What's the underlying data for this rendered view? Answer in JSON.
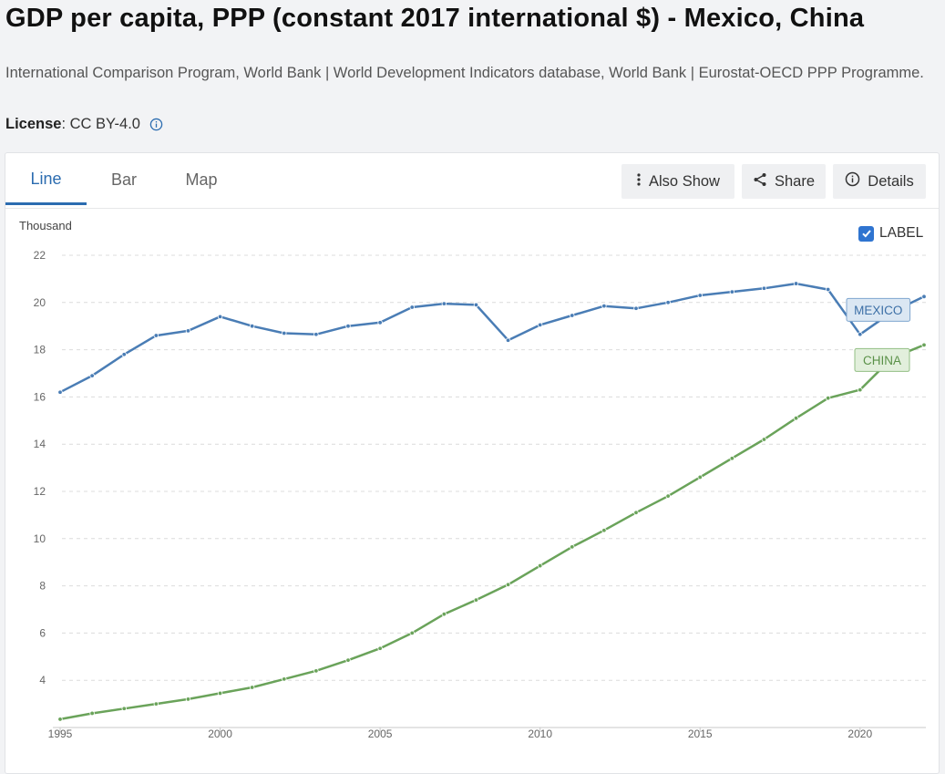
{
  "header": {
    "title": "GDP per capita, PPP (constant 2017 international $) - Mexico, China",
    "sources": "International Comparison Program, World Bank | World Development Indicators database, World Bank | Eurostat-OECD PPP Programme.",
    "license_label": "License",
    "license_value": " : CC BY-4.0"
  },
  "tabs": [
    {
      "label": "Line",
      "active": true
    },
    {
      "label": "Bar",
      "active": false
    },
    {
      "label": "Map",
      "active": false
    }
  ],
  "toolbar": {
    "also_show_label": "Also Show",
    "share_label": "Share",
    "details_label": "Details"
  },
  "label_toggle": {
    "label": "LABEL",
    "checked": true
  },
  "icons": {
    "also_show": "vertical-dots-icon",
    "share": "share-icon",
    "details": "info-circle-icon",
    "license_info": "info-circle-icon"
  },
  "colors": {
    "accent": "#2b6cb0",
    "mexico": "#4a7db5",
    "china": "#6aa35a"
  },
  "chart_data": {
    "type": "line",
    "ylabel": "Thousand",
    "ylim": [
      2,
      22
    ],
    "yticks": [
      4,
      6,
      8,
      10,
      12,
      14,
      16,
      18,
      20,
      22
    ],
    "xlim": [
      1995,
      2022
    ],
    "xticks": [
      1995,
      2000,
      2005,
      2010,
      2015,
      2020
    ],
    "grid": true,
    "x": [
      1995,
      1996,
      1997,
      1998,
      1999,
      2000,
      2001,
      2002,
      2003,
      2004,
      2005,
      2006,
      2007,
      2008,
      2009,
      2010,
      2011,
      2012,
      2013,
      2014,
      2015,
      2016,
      2017,
      2018,
      2019,
      2020,
      2021,
      2022
    ],
    "series": [
      {
        "name": "MEXICO",
        "color": "#4a7db5",
        "values": [
          16.2,
          16.9,
          17.8,
          18.6,
          18.8,
          19.4,
          19.0,
          18.7,
          18.65,
          19.0,
          19.15,
          19.8,
          19.95,
          19.9,
          18.4,
          19.05,
          19.45,
          19.85,
          19.75,
          20.0,
          20.3,
          20.45,
          20.6,
          20.8,
          20.55,
          18.65,
          19.6,
          20.25
        ]
      },
      {
        "name": "CHINA",
        "color": "#6aa35a",
        "values": [
          2.35,
          2.6,
          2.8,
          3.0,
          3.2,
          3.45,
          3.7,
          4.05,
          4.4,
          4.85,
          5.35,
          6.0,
          6.8,
          7.4,
          8.05,
          8.85,
          9.65,
          10.35,
          11.1,
          11.8,
          12.6,
          13.4,
          14.2,
          15.1,
          15.95,
          16.3,
          17.65,
          18.2
        ]
      }
    ]
  }
}
